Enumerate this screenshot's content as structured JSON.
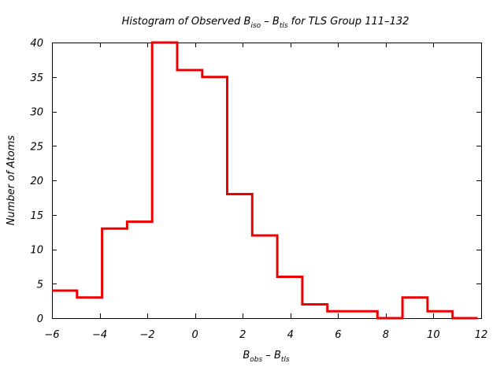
{
  "chart_data": {
    "type": "histogram",
    "title": {
      "prefix": "Histogram of Observed B",
      "sub1": "iso",
      "mid": " – B",
      "sub2": "tls",
      "suffix": " for TLS Group 111–132"
    },
    "xlabel": {
      "main1": "B",
      "sub1": "obs",
      "mid": " – B",
      "sub2": "tls"
    },
    "ylabel": "Number of Atoms",
    "xlim": [
      -6,
      12
    ],
    "ylim": [
      0,
      40
    ],
    "xticks": [
      -6,
      -4,
      -2,
      0,
      2,
      4,
      6,
      8,
      10,
      12
    ],
    "xtick_labels": [
      "−6",
      "−4",
      "−2",
      "0",
      "2",
      "4",
      "6",
      "8",
      "10",
      "12"
    ],
    "yticks": [
      0,
      5,
      10,
      15,
      20,
      25,
      30,
      35,
      40
    ],
    "ytick_labels": [
      "0",
      "5",
      "10",
      "15",
      "20",
      "25",
      "30",
      "35",
      "40"
    ],
    "bin_edges": [
      -6.0,
      -4.95,
      -3.9,
      -2.85,
      -1.8,
      -0.75,
      0.3,
      1.35,
      2.4,
      3.45,
      4.5,
      5.55,
      6.6,
      7.65,
      8.7,
      9.75,
      10.8,
      11.85
    ],
    "counts": [
      4,
      3,
      13,
      14,
      40,
      36,
      35,
      18,
      12,
      6,
      2,
      1,
      1,
      0,
      3,
      1,
      0
    ],
    "line_color": "#ee0000",
    "grid": false
  }
}
